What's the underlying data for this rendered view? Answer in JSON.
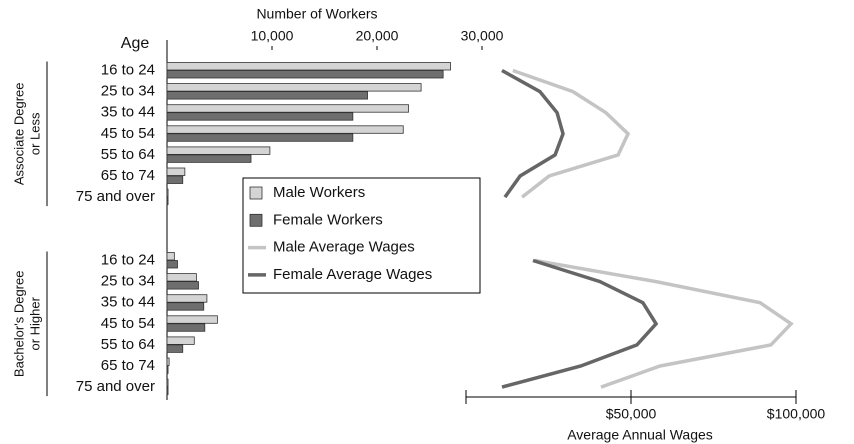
{
  "chart_data": {
    "type": "bar",
    "xlabel": "Number of Workers",
    "ylabel": "Age",
    "x2label": "Average Annual Wages",
    "xlim": [
      0,
      30000
    ],
    "xticks": [
      {
        "value": 10000,
        "label": "10,000"
      },
      {
        "value": 20000,
        "label": "20,000"
      },
      {
        "value": 30000,
        "label": "30,000"
      }
    ],
    "x2lim": [
      0,
      100000
    ],
    "x2ticks": [
      {
        "value": 50000,
        "label": "$50,000"
      },
      {
        "value": 100000,
        "label": "$100,000"
      }
    ],
    "categories": [
      "16 to 24",
      "25 to 34",
      "35 to 44",
      "45 to 54",
      "55 to 64",
      "65 to 74",
      "75 and over"
    ],
    "groups": [
      [
        "Associate Degree",
        "or Less"
      ],
      [
        "Bachelor's Degree",
        "or Higher"
      ]
    ],
    "series": [
      {
        "name": "Male Workers",
        "kind": "bar",
        "axis": "x",
        "color": "#d4d4d4",
        "values": [
          [
            27000,
            24200,
            23000,
            22500,
            9800,
            1700,
            100
          ],
          [
            700,
            2800,
            3800,
            4800,
            2600,
            200,
            100
          ]
        ]
      },
      {
        "name": "Female Workers",
        "kind": "bar",
        "axis": "x",
        "color": "#6e6e6e",
        "values": [
          [
            26300,
            19100,
            17700,
            17700,
            8000,
            1500,
            100
          ],
          [
            1000,
            3000,
            3500,
            3600,
            1500,
            100,
            100
          ]
        ]
      },
      {
        "name": "Male Average Wages",
        "kind": "line",
        "axis": "x2",
        "color": "#c4c4c4",
        "values": [
          [
            14200,
            32400,
            42400,
            49100,
            46100,
            25200,
            17000
          ],
          [
            20900,
            57600,
            89100,
            98500,
            92400,
            58800,
            40900
          ]
        ]
      },
      {
        "name": "Female Average Wages",
        "kind": "line",
        "axis": "x2",
        "color": "#666666",
        "values": [
          [
            10900,
            22400,
            27600,
            29400,
            27000,
            16400,
            11800
          ],
          [
            20300,
            40600,
            53600,
            57600,
            51800,
            34800,
            10900
          ]
        ]
      }
    ]
  }
}
